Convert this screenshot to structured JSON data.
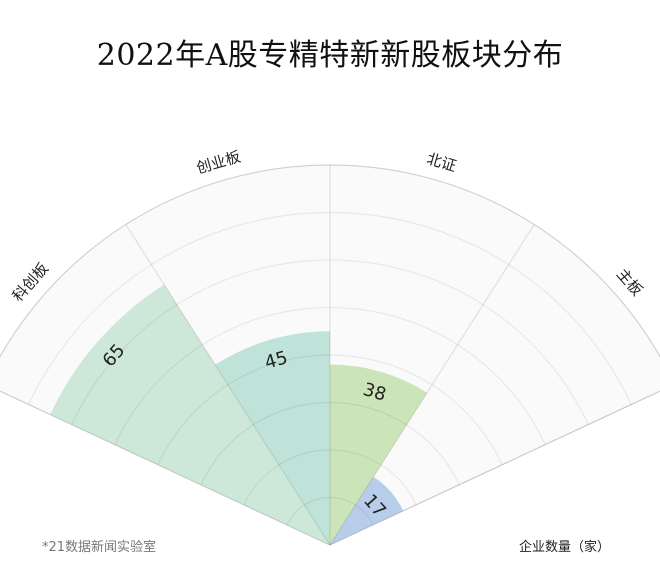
{
  "title": "2022年A股专精特新新股板块分布",
  "source": "*21数据新闻实验室",
  "unit_label": "企业数量（家）",
  "chart_data": {
    "type": "radial-bar",
    "title": "2022年A股专精特新新股板块分布",
    "categories": [
      "科创板",
      "创业板",
      "北证",
      "主板"
    ],
    "values": [
      65,
      45,
      38,
      17
    ],
    "value_max": 80,
    "colors": [
      "#cde8d8",
      "#bfe3d9",
      "#cce5b8",
      "#b7cdea"
    ],
    "grid": true,
    "unit": "企业数量（家）"
  }
}
